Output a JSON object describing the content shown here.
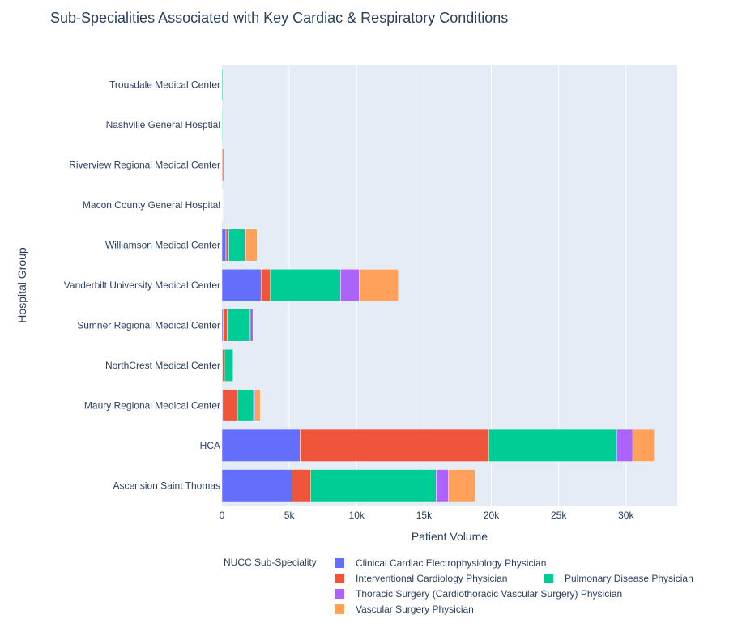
{
  "chart_data": {
    "type": "bar",
    "orientation": "horizontal",
    "barmode": "stack",
    "title": "Sub-Specialities Associated with Key Cardiac & Respiratory Conditions",
    "xlabel": "Patient Volume",
    "ylabel": "Hospital Group",
    "xlim": [
      0,
      33800
    ],
    "x_ticks": [
      0,
      5000,
      10000,
      15000,
      20000,
      25000,
      30000
    ],
    "x_tick_labels": [
      "0",
      "5k",
      "10k",
      "15k",
      "20k",
      "25k",
      "30k"
    ],
    "grid": true,
    "legend_title": "NUCC Sub-Speciality",
    "legend_position": "bottom",
    "categories": [
      "Ascension Saint Thomas",
      "HCA",
      "Maury Regional Medical Center",
      "NorthCrest Medical Center",
      "Sumner Regional Medical Center",
      "Vanderbilt University Medical Center",
      "Williamson Medical Center",
      "Macon County General Hospital",
      "Riverview Regional Medical Center",
      "Nashville General Hosptial",
      "Trousdale Medical Center"
    ],
    "series": [
      {
        "name": "Clinical Cardiac Electrophysiology Physician",
        "color": "#636efa",
        "values": [
          5200,
          5800,
          50,
          30,
          100,
          2900,
          300,
          0,
          0,
          0,
          0
        ]
      },
      {
        "name": "Interventional Cardiology Physician",
        "color": "#ef553b",
        "values": [
          1400,
          14000,
          1100,
          150,
          300,
          700,
          200,
          30,
          60,
          10,
          0
        ]
      },
      {
        "name": "Pulmonary Disease Physician",
        "color": "#00cc96",
        "values": [
          9300,
          9500,
          1200,
          650,
          1700,
          5200,
          1200,
          30,
          80,
          50,
          60
        ]
      },
      {
        "name": "Thoracic Surgery (Cardiothoracic Vascular Surgery) Physician",
        "color": "#ab63fa",
        "values": [
          900,
          1200,
          100,
          0,
          200,
          1400,
          50,
          0,
          0,
          0,
          0
        ]
      },
      {
        "name": "Vascular Surgery Physician",
        "color": "#ffa15a",
        "values": [
          2000,
          1600,
          400,
          20,
          0,
          2900,
          850,
          0,
          0,
          0,
          0
        ]
      }
    ]
  }
}
